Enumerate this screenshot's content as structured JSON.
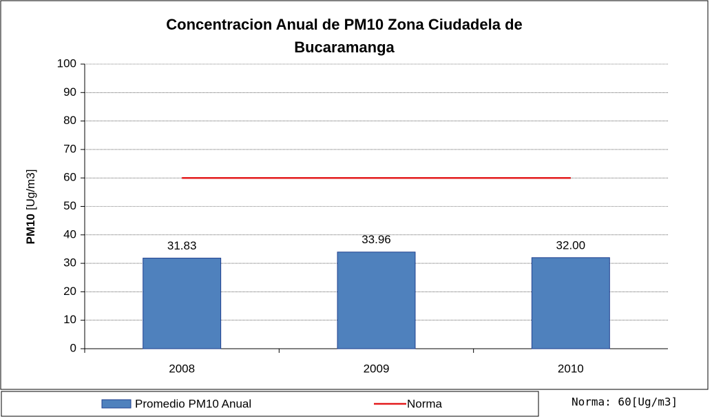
{
  "chart_data": {
    "type": "bar",
    "title": [
      "Concentracion  Anual de PM10 Zona Ciudadela de",
      "Bucaramanga"
    ],
    "y_label": [
      "PM10",
      "[Ug/m3]"
    ],
    "categories": [
      "2008",
      "2009",
      "2010"
    ],
    "series": [
      {
        "name": "Promedio PM10 Anual",
        "type": "bar",
        "color": "#4f81bd",
        "values": [
          31.83,
          33.96,
          32.0
        ],
        "value_labels": [
          "31.83",
          "33.96",
          "32.00"
        ]
      },
      {
        "name": "Norma",
        "type": "line",
        "color": "#e31a1c",
        "values": [
          60,
          60,
          60
        ]
      }
    ],
    "ylim": [
      0,
      100
    ],
    "yticks": [
      0,
      10,
      20,
      30,
      40,
      50,
      60,
      70,
      80,
      90,
      100
    ],
    "grid": true,
    "legend": "bottom",
    "annotation": "Norma: 60[Ug/m3]"
  }
}
